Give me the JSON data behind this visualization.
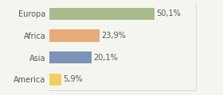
{
  "categories": [
    "Europa",
    "Africa",
    "Asia",
    "America"
  ],
  "values": [
    50.1,
    23.9,
    20.1,
    5.9
  ],
  "labels": [
    "50,1%",
    "23,9%",
    "20,1%",
    "5,9%"
  ],
  "bar_colors": [
    "#a8bb8a",
    "#e8aa78",
    "#7b93b8",
    "#f0d060"
  ],
  "background_color": "#f5f5f0",
  "text_color": "#555555",
  "label_fontsize": 7,
  "tick_fontsize": 7,
  "xlim": [
    0,
    70
  ],
  "bar_height": 0.55
}
